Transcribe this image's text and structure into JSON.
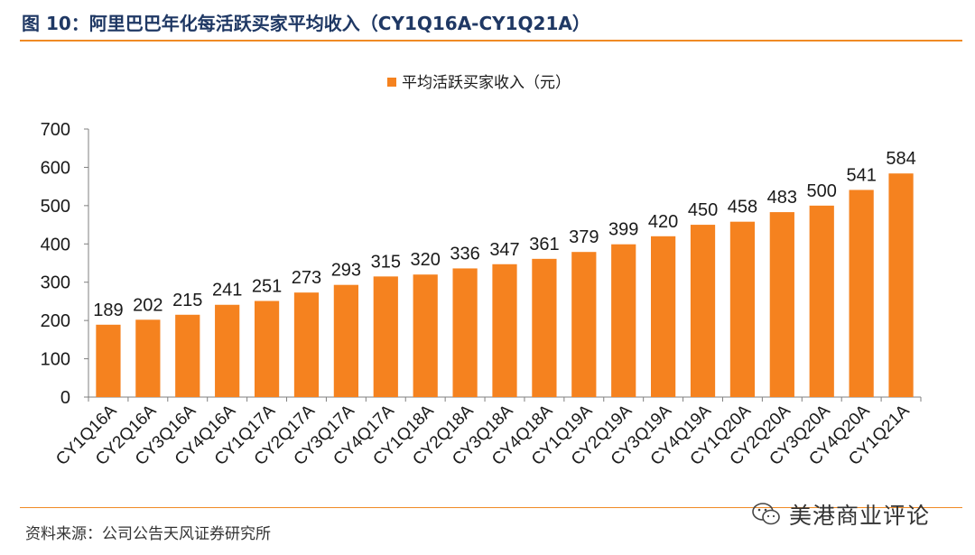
{
  "header": {
    "title": "图 10：阿里巴巴年化每活跃买家平均收入（CY1Q16A-CY1Q21A）"
  },
  "footer": {
    "source": "资料来源：公司公告天风证券研究所",
    "watermark": "美港商业评论"
  },
  "colors": {
    "accent": "#f08a24",
    "bar": "#f5821f",
    "title": "#1f3864"
  },
  "icons": {
    "watermark": "wechat-icon"
  },
  "chart_data": {
    "type": "bar",
    "title": "",
    "xlabel": "",
    "ylabel": "",
    "ylim": [
      0,
      700
    ],
    "yticks": [
      0,
      100,
      200,
      300,
      400,
      500,
      600,
      700
    ],
    "grid": false,
    "legend_position": "top-center",
    "categories": [
      "CY1Q16A",
      "CY2Q16A",
      "CY3Q16A",
      "CY4Q16A",
      "CY1Q17A",
      "CY2Q17A",
      "CY3Q17A",
      "CY4Q17A",
      "CY1Q18A",
      "CY2Q18A",
      "CY3Q18A",
      "CY4Q18A",
      "CY1Q19A",
      "CY2Q19A",
      "CY3Q19A",
      "CY4Q19A",
      "CY1Q20A",
      "CY2Q20A",
      "CY3Q20A",
      "CY4Q20A",
      "CY1Q21A"
    ],
    "series": [
      {
        "name": "平均活跃买家收入（元）",
        "values": [
          189,
          202,
          215,
          241,
          251,
          273,
          293,
          315,
          320,
          336,
          347,
          361,
          379,
          399,
          420,
          450,
          458,
          483,
          500,
          541,
          584
        ]
      }
    ]
  }
}
